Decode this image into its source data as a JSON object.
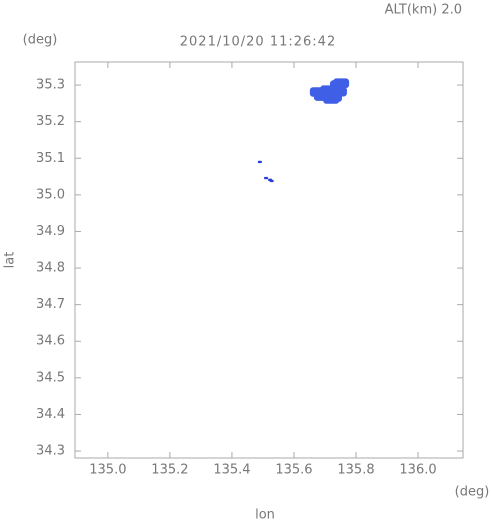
{
  "chart_data": {
    "type": "scatter",
    "title": "2021/10/20 11:26:42",
    "altitude_label": "ALT(km) 2.0",
    "y_unit": "(deg)",
    "x_unit": "(deg)",
    "xlabel": "lon",
    "ylabel": "lat",
    "xlim": [
      134.894,
      136.145
    ],
    "ylim": [
      34.281,
      35.363
    ],
    "xticks": [
      {
        "value": 135,
        "label": "135.0"
      },
      135.2,
      135.4,
      135.6,
      135.8,
      {
        "value": 136,
        "label": "136.0"
      }
    ],
    "yticks": [
      {
        "value": 34.3,
        "label": "34.3"
      },
      34.4,
      34.5,
      34.6,
      34.7,
      34.8,
      34.9,
      {
        "value": 35,
        "label": "35.0"
      },
      35.1,
      35.2,
      35.3
    ],
    "series": [
      {
        "color": "#3f5fe6",
        "marker_size": 8,
        "x": [
          135.677,
          135.69,
          135.71,
          135.729,
          135.742,
          135.752,
          135.745,
          135.72
        ],
        "y": [
          35.281,
          35.27,
          35.286,
          35.267,
          35.3,
          35.305,
          35.282,
          35.262
        ]
      },
      {
        "color": "#2a3fd8",
        "marker_size": 2,
        "x": [
          135.49,
          135.51,
          135.523,
          135.528
        ],
        "y": [
          35.09,
          35.046,
          35.041,
          35.038
        ]
      }
    ]
  }
}
